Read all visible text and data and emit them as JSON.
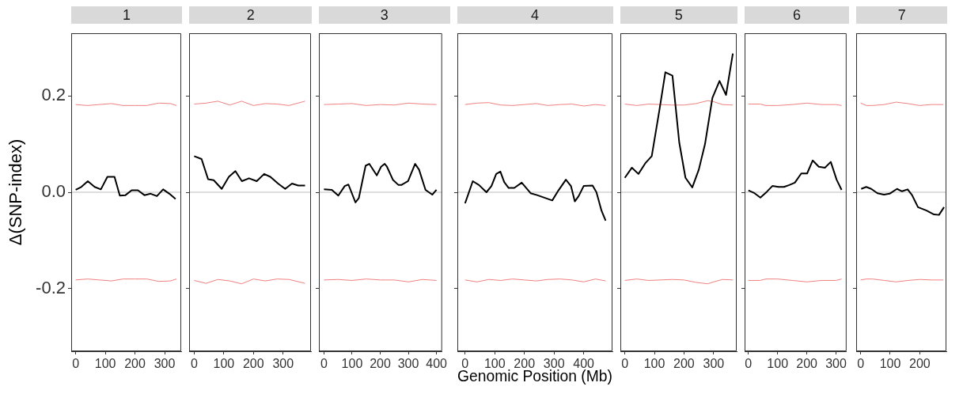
{
  "chart_data": [
    {
      "type": "line",
      "title": "1",
      "ylabel": "Δ(SNP-index)",
      "xlim": [
        -15,
        356
      ],
      "xticks": [
        0,
        100,
        200,
        300
      ],
      "ylim": [
        -0.33,
        0.33
      ],
      "yticks": [
        -0.2,
        {
          "value": 0,
          "label": "0.0"
        },
        0.2
      ],
      "grid": false,
      "ref_lines": [
        {
          "axis": "y",
          "value": 0,
          "color": "#bdbdbd"
        }
      ],
      "series": [
        {
          "color": "#000000",
          "x": [
            0,
            19,
            41,
            64,
            85,
            107,
            131,
            149,
            168,
            189,
            210,
            232,
            253,
            274,
            295,
            316,
            337
          ],
          "values": [
            0.005,
            0.011,
            0.023,
            0.011,
            0.006,
            0.032,
            0.032,
            -0.007,
            -0.006,
            0.004,
            0.004,
            -0.006,
            -0.003,
            -0.008,
            0.006,
            -0.003,
            -0.014
          ]
        },
        {
          "color": "#f08080",
          "x": [
            0,
            40,
            80,
            120,
            160,
            200,
            240,
            280,
            320,
            340
          ],
          "values": [
            0.182,
            0.18,
            0.182,
            0.184,
            0.18,
            0.18,
            0.18,
            0.185,
            0.184,
            0.18
          ]
        },
        {
          "color": "#f08080",
          "x": [
            0,
            40,
            80,
            120,
            160,
            200,
            240,
            280,
            320,
            340
          ],
          "values": [
            -0.182,
            -0.18,
            -0.182,
            -0.184,
            -0.18,
            -0.18,
            -0.18,
            -0.185,
            -0.184,
            -0.18
          ]
        }
      ]
    },
    {
      "type": "line",
      "title": "2",
      "tick_labels": "x",
      "xlim": [
        -17,
        394
      ],
      "xticks": [
        0,
        100,
        200,
        300
      ],
      "ylim": [
        -0.33,
        0.33
      ],
      "yticks": [
        -0.2,
        0,
        0.2
      ],
      "grid": false,
      "ref_lines": [
        {
          "axis": "y",
          "value": 0,
          "color": "#bdbdbd"
        }
      ],
      "series": [
        {
          "color": "#000000",
          "x": [
            0,
            25,
            47,
            66,
            93,
            117,
            139,
            161,
            185,
            211,
            236,
            257,
            283,
            307,
            330,
            351,
            374
          ],
          "values": [
            0.075,
            0.069,
            0.027,
            0.025,
            0.007,
            0.032,
            0.044,
            0.023,
            0.029,
            0.023,
            0.038,
            0.032,
            0.018,
            0.007,
            0.018,
            0.014,
            0.014
          ]
        },
        {
          "color": "#f08080",
          "x": [
            0,
            40,
            80,
            120,
            160,
            200,
            240,
            280,
            320,
            374
          ],
          "values": [
            0.183,
            0.185,
            0.189,
            0.181,
            0.189,
            0.18,
            0.184,
            0.183,
            0.18,
            0.189
          ]
        },
        {
          "color": "#f08080",
          "x": [
            0,
            40,
            80,
            120,
            160,
            200,
            240,
            280,
            320,
            374
          ],
          "values": [
            -0.183,
            -0.189,
            -0.181,
            -0.184,
            -0.19,
            -0.18,
            -0.184,
            -0.18,
            -0.181,
            -0.189
          ]
        }
      ]
    },
    {
      "type": "line",
      "title": "3",
      "tick_labels": "x",
      "xlim": [
        -18,
        420
      ],
      "xticks": [
        0,
        100,
        200,
        300,
        400
      ],
      "ylim": [
        -0.33,
        0.33
      ],
      "yticks": [
        -0.2,
        0,
        0.2
      ],
      "grid": false,
      "ref_lines": [
        {
          "axis": "y",
          "value": 0,
          "color": "#bdbdbd"
        }
      ],
      "series": [
        {
          "color": "#000000",
          "x": [
            0,
            28,
            51,
            74,
            87,
            112,
            124,
            148,
            161,
            188,
            203,
            216,
            224,
            245,
            265,
            275,
            299,
            324,
            338,
            361,
            385,
            400
          ],
          "values": [
            0.006,
            0.005,
            -0.007,
            0.013,
            0.016,
            -0.021,
            -0.012,
            0.055,
            0.059,
            0.035,
            0.053,
            0.059,
            0.053,
            0.026,
            0.015,
            0.015,
            0.023,
            0.059,
            0.047,
            0.005,
            -0.005,
            0.005
          ]
        },
        {
          "color": "#f08080",
          "x": [
            0,
            50,
            100,
            150,
            200,
            250,
            300,
            350,
            400
          ],
          "values": [
            0.182,
            0.183,
            0.184,
            0.18,
            0.182,
            0.181,
            0.185,
            0.183,
            0.182
          ]
        },
        {
          "color": "#f08080",
          "x": [
            0,
            50,
            100,
            150,
            200,
            250,
            300,
            350,
            400
          ],
          "values": [
            -0.182,
            -0.181,
            -0.183,
            -0.18,
            -0.182,
            -0.182,
            -0.186,
            -0.181,
            -0.183
          ]
        }
      ]
    },
    {
      "type": "line",
      "title": "4",
      "tick_labels": "x",
      "xlabel": "Genomic Position (Mb)",
      "xlim": [
        -26,
        497
      ],
      "xticks": [
        0,
        100,
        200,
        300,
        400
      ],
      "ylim": [
        -0.33,
        0.33
      ],
      "yticks": [
        -0.2,
        0,
        0.2
      ],
      "grid": false,
      "ref_lines": [
        {
          "axis": "y",
          "value": 0,
          "color": "#bdbdbd"
        }
      ],
      "series": [
        {
          "color": "#000000",
          "x": [
            0,
            26,
            47,
            72,
            89,
            105,
            119,
            132,
            147,
            166,
            191,
            221,
            243,
            294,
            315,
            340,
            357,
            370,
            383,
            400,
            430,
            443,
            460,
            474
          ],
          "values": [
            -0.023,
            0.023,
            0.015,
            0,
            0.013,
            0.038,
            0.043,
            0.021,
            0.009,
            0.009,
            0.02,
            -0.002,
            -0.006,
            -0.017,
            0.004,
            0.026,
            0.013,
            -0.019,
            -0.008,
            0.013,
            0.014,
            0,
            -0.038,
            -0.059
          ]
        },
        {
          "color": "#f08080",
          "x": [
            0,
            40,
            80,
            120,
            160,
            200,
            240,
            280,
            320,
            360,
            400,
            440,
            474
          ],
          "values": [
            0.182,
            0.185,
            0.186,
            0.181,
            0.18,
            0.182,
            0.184,
            0.18,
            0.182,
            0.183,
            0.179,
            0.182,
            0.18
          ]
        },
        {
          "color": "#f08080",
          "x": [
            0,
            40,
            80,
            120,
            160,
            200,
            240,
            280,
            320,
            360,
            400,
            440,
            474
          ],
          "values": [
            -0.182,
            -0.186,
            -0.181,
            -0.183,
            -0.18,
            -0.182,
            -0.184,
            -0.181,
            -0.18,
            -0.182,
            -0.186,
            -0.18,
            -0.184
          ]
        }
      ]
    },
    {
      "type": "line",
      "title": "5",
      "tick_labels": "x",
      "xlim": [
        -15,
        378
      ],
      "xticks": [
        0,
        100,
        200,
        300
      ],
      "ylim": [
        -0.33,
        0.33
      ],
      "yticks": [
        -0.2,
        0,
        0.2
      ],
      "grid": false,
      "ref_lines": [
        {
          "axis": "y",
          "value": 0,
          "color": "#bdbdbd"
        }
      ],
      "series": [
        {
          "color": "#000000",
          "x": [
            0,
            24,
            46,
            69,
            91,
            117,
            137,
            161,
            184,
            205,
            228,
            250,
            271,
            296,
            320,
            342,
            365
          ],
          "values": [
            0.03,
            0.051,
            0.038,
            0.06,
            0.075,
            0.171,
            0.249,
            0.242,
            0.103,
            0.03,
            0.01,
            0.047,
            0.1,
            0.196,
            0.231,
            0.202,
            0.288
          ]
        },
        {
          "color": "#f08080",
          "x": [
            0,
            40,
            80,
            120,
            160,
            200,
            240,
            280,
            300,
            330,
            365
          ],
          "values": [
            0.183,
            0.18,
            0.183,
            0.182,
            0.181,
            0.181,
            0.184,
            0.19,
            0.188,
            0.182,
            0.181
          ]
        },
        {
          "color": "#f08080",
          "x": [
            0,
            40,
            80,
            120,
            160,
            200,
            240,
            280,
            300,
            330,
            365
          ],
          "values": [
            -0.183,
            -0.18,
            -0.183,
            -0.182,
            -0.181,
            -0.182,
            -0.187,
            -0.19,
            -0.186,
            -0.181,
            -0.182
          ]
        }
      ]
    },
    {
      "type": "line",
      "title": "6",
      "tick_labels": "x",
      "xlim": [
        -13,
        336
      ],
      "xticks": [
        0,
        100,
        200,
        300
      ],
      "ylim": [
        -0.33,
        0.33
      ],
      "yticks": [
        -0.2,
        0,
        0.2
      ],
      "grid": false,
      "ref_lines": [
        {
          "axis": "y",
          "value": 0,
          "color": "#bdbdbd"
        }
      ],
      "series": [
        {
          "color": "#000000",
          "x": [
            0,
            21,
            41,
            63,
            82,
            103,
            122,
            140,
            159,
            181,
            201,
            220,
            241,
            262,
            282,
            302,
            319
          ],
          "values": [
            0.004,
            -0.002,
            -0.011,
            0.001,
            0.013,
            0.011,
            0.011,
            0.015,
            0.02,
            0.039,
            0.039,
            0.066,
            0.053,
            0.051,
            0.063,
            0.026,
            0.005
          ]
        },
        {
          "color": "#f08080",
          "x": [
            0,
            40,
            60,
            100,
            150,
            200,
            250,
            300,
            319
          ],
          "values": [
            0.183,
            0.183,
            0.18,
            0.18,
            0.182,
            0.185,
            0.182,
            0.182,
            0.18
          ]
        },
        {
          "color": "#f08080",
          "x": [
            0,
            40,
            60,
            100,
            150,
            200,
            250,
            300,
            319
          ],
          "values": [
            -0.183,
            -0.183,
            -0.18,
            -0.18,
            -0.183,
            -0.186,
            -0.183,
            -0.183,
            -0.18
          ]
        }
      ]
    },
    {
      "type": "line",
      "title": "7",
      "tick_labels": "x",
      "xlim": [
        -15,
        290
      ],
      "xticks": [
        0,
        100,
        200
      ],
      "ylim": [
        -0.33,
        0.33
      ],
      "yticks": [
        -0.2,
        0,
        0.2
      ],
      "grid": false,
      "ref_lines": [
        {
          "axis": "y",
          "value": 0,
          "color": "#bdbdbd"
        }
      ],
      "series": [
        {
          "color": "#000000",
          "x": [
            2,
            19,
            36,
            57,
            79,
            98,
            123,
            140,
            159,
            174,
            194,
            223,
            248,
            265,
            282
          ],
          "values": [
            0.007,
            0.011,
            0.007,
            -0.002,
            -0.005,
            -0.003,
            0.007,
            0.002,
            0.006,
            -0.006,
            -0.031,
            -0.038,
            -0.046,
            -0.047,
            -0.031
          ]
        },
        {
          "color": "#f08080",
          "x": [
            0,
            20,
            40,
            80,
            120,
            160,
            200,
            240,
            280
          ],
          "values": [
            0.185,
            0.18,
            0.18,
            0.182,
            0.187,
            0.184,
            0.18,
            0.182,
            0.182
          ]
        },
        {
          "color": "#f08080",
          "x": [
            0,
            20,
            40,
            80,
            120,
            160,
            200,
            240,
            280
          ],
          "values": [
            -0.182,
            -0.18,
            -0.18,
            -0.183,
            -0.186,
            -0.183,
            -0.181,
            -0.182,
            -0.182
          ]
        }
      ]
    }
  ]
}
